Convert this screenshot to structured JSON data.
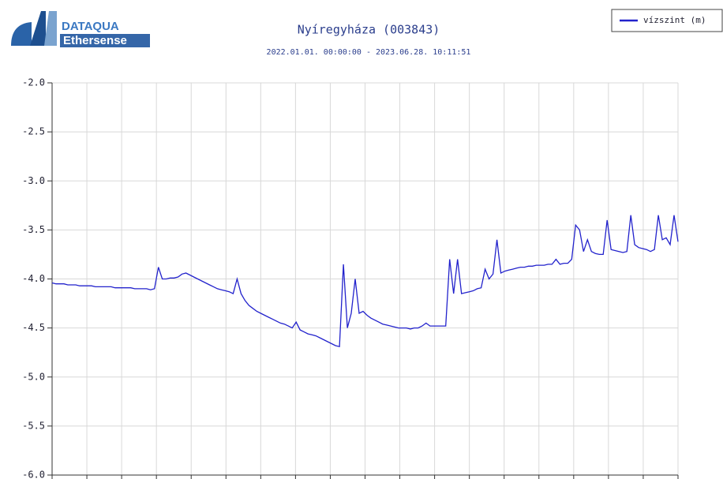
{
  "logo": {
    "line1": "DATAQUA",
    "line2": "Ethersense"
  },
  "chart_data": {
    "type": "line",
    "title": "Nyíregyháza (003843)",
    "subtitle": "2022.01.01. 00:00:00 - 2023.06.28. 10:11:51",
    "legend": "top-right",
    "grid": true,
    "ylim": [
      -6,
      -2
    ],
    "yticks": [
      {
        "value": -2,
        "label": "-2.0"
      },
      {
        "value": -2.5,
        "label": "-2.5"
      },
      {
        "value": -3,
        "label": "-3.0"
      },
      {
        "value": -3.5,
        "label": "-3.5"
      },
      {
        "value": -4,
        "label": "-4.0"
      },
      {
        "value": -4.5,
        "label": "-4.5"
      },
      {
        "value": -5,
        "label": "-5.0"
      },
      {
        "value": -5.5,
        "label": "-5.5"
      },
      {
        "value": -6,
        "label": "-6.0"
      }
    ],
    "series": [
      {
        "name": "vízszint (m)",
        "color": "#2222cc",
        "values": [
          -4.04,
          -4.05,
          -4.05,
          -4.05,
          -4.06,
          -4.06,
          -4.06,
          -4.07,
          -4.07,
          -4.07,
          -4.07,
          -4.08,
          -4.08,
          -4.08,
          -4.08,
          -4.08,
          -4.09,
          -4.09,
          -4.09,
          -4.09,
          -4.09,
          -4.1,
          -4.1,
          -4.1,
          -4.1,
          -4.11,
          -4.1,
          -3.88,
          -4.0,
          -4.0,
          -3.99,
          -3.99,
          -3.98,
          -3.95,
          -3.94,
          -3.96,
          -3.98,
          -4.0,
          -4.02,
          -4.04,
          -4.06,
          -4.08,
          -4.1,
          -4.11,
          -4.12,
          -4.13,
          -4.15,
          -4.0,
          -4.15,
          -4.22,
          -4.27,
          -4.3,
          -4.33,
          -4.35,
          -4.37,
          -4.39,
          -4.41,
          -4.43,
          -4.45,
          -4.46,
          -4.48,
          -4.5,
          -4.44,
          -4.52,
          -4.54,
          -4.56,
          -4.57,
          -4.58,
          -4.6,
          -4.62,
          -4.64,
          -4.66,
          -4.68,
          -4.69,
          -3.85,
          -4.5,
          -4.35,
          -4.0,
          -4.35,
          -4.33,
          -4.37,
          -4.4,
          -4.42,
          -4.44,
          -4.46,
          -4.47,
          -4.48,
          -4.49,
          -4.5,
          -4.5,
          -4.5,
          -4.51,
          -4.5,
          -4.5,
          -4.48,
          -4.45,
          -4.48,
          -4.48,
          -4.48,
          -4.48,
          -4.48,
          -3.8,
          -4.15,
          -3.8,
          -4.15,
          -4.14,
          -4.13,
          -4.12,
          -4.1,
          -4.09,
          -3.9,
          -4.0,
          -3.95,
          -3.6,
          -3.94,
          -3.92,
          -3.91,
          -3.9,
          -3.89,
          -3.88,
          -3.88,
          -3.87,
          -3.87,
          -3.86,
          -3.86,
          -3.86,
          -3.85,
          -3.85,
          -3.8,
          -3.85,
          -3.84,
          -3.84,
          -3.8,
          -3.45,
          -3.5,
          -3.72,
          -3.6,
          -3.72,
          -3.74,
          -3.75,
          -3.75,
          -3.4,
          -3.7,
          -3.71,
          -3.72,
          -3.73,
          -3.72,
          -3.35,
          -3.65,
          -3.68,
          -3.69,
          -3.7,
          -3.72,
          -3.7,
          -3.35,
          -3.6,
          -3.58,
          -3.65,
          -3.35,
          -3.62
        ]
      }
    ]
  }
}
